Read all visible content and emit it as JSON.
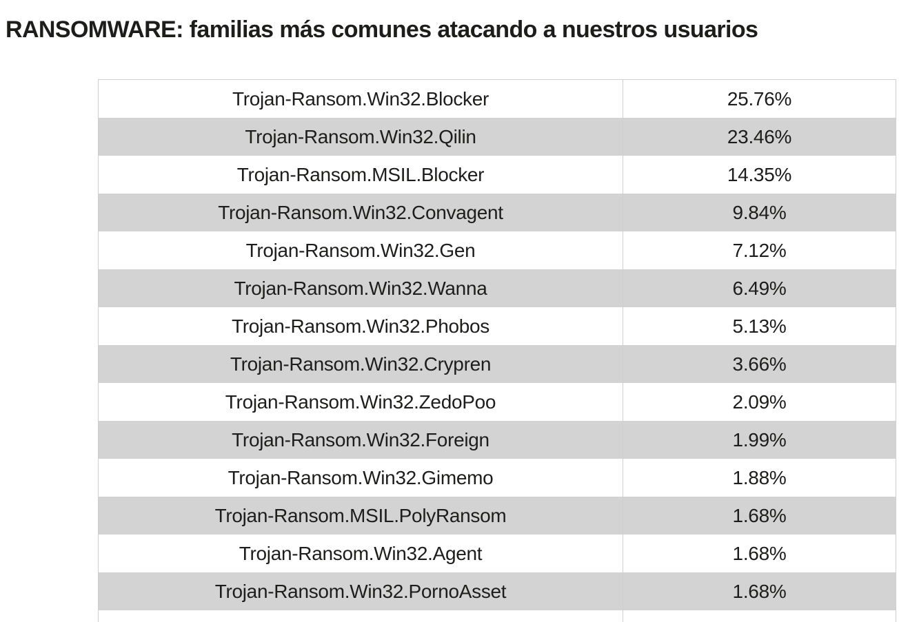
{
  "title": "RANSOMWARE: familias más comunes atacando a nuestros usuarios",
  "colors": {
    "text": "#1d1d1b",
    "row_base": "#ffffff",
    "row_alt": "#d3d3d3",
    "border": "#cfcfcf"
  },
  "table": {
    "rows": [
      {
        "family": "Trojan-Ransom.Win32.Blocker",
        "share": "25.76%"
      },
      {
        "family": "Trojan-Ransom.Win32.Qilin",
        "share": "23.46%"
      },
      {
        "family": "Trojan-Ransom.MSIL.Blocker",
        "share": "14.35%"
      },
      {
        "family": "Trojan-Ransom.Win32.Convagent",
        "share": "9.84%"
      },
      {
        "family": "Trojan-Ransom.Win32.Gen",
        "share": "7.12%"
      },
      {
        "family": "Trojan-Ransom.Win32.Wanna",
        "share": "6.49%"
      },
      {
        "family": "Trojan-Ransom.Win32.Phobos",
        "share": "5.13%"
      },
      {
        "family": "Trojan-Ransom.Win32.Crypren",
        "share": "3.66%"
      },
      {
        "family": "Trojan-Ransom.Win32.ZedoPoo",
        "share": "2.09%"
      },
      {
        "family": "Trojan-Ransom.Win32.Foreign",
        "share": "1.99%"
      },
      {
        "family": "Trojan-Ransom.Win32.Gimemo",
        "share": "1.88%"
      },
      {
        "family": "Trojan-Ransom.MSIL.PolyRansom",
        "share": "1.68%"
      },
      {
        "family": "Trojan-Ransom.Win32.Agent",
        "share": "1.68%"
      },
      {
        "family": "Trojan-Ransom.Win32.PornoAsset",
        "share": "1.68%"
      }
    ]
  },
  "chart_data": {
    "type": "table",
    "title": "RANSOMWARE: familias más comunes atacando a nuestros usuarios",
    "categories": [
      "Trojan-Ransom.Win32.Blocker",
      "Trojan-Ransom.Win32.Qilin",
      "Trojan-Ransom.MSIL.Blocker",
      "Trojan-Ransom.Win32.Convagent",
      "Trojan-Ransom.Win32.Gen",
      "Trojan-Ransom.Win32.Wanna",
      "Trojan-Ransom.Win32.Phobos",
      "Trojan-Ransom.Win32.Crypren",
      "Trojan-Ransom.Win32.ZedoPoo",
      "Trojan-Ransom.Win32.Foreign",
      "Trojan-Ransom.Win32.Gimemo",
      "Trojan-Ransom.MSIL.PolyRansom",
      "Trojan-Ransom.Win32.Agent",
      "Trojan-Ransom.Win32.PornoAsset"
    ],
    "values": [
      25.76,
      23.46,
      14.35,
      9.84,
      7.12,
      6.49,
      5.13,
      3.66,
      2.09,
      1.99,
      1.88,
      1.68,
      1.68,
      1.68
    ],
    "value_unit": "%"
  }
}
